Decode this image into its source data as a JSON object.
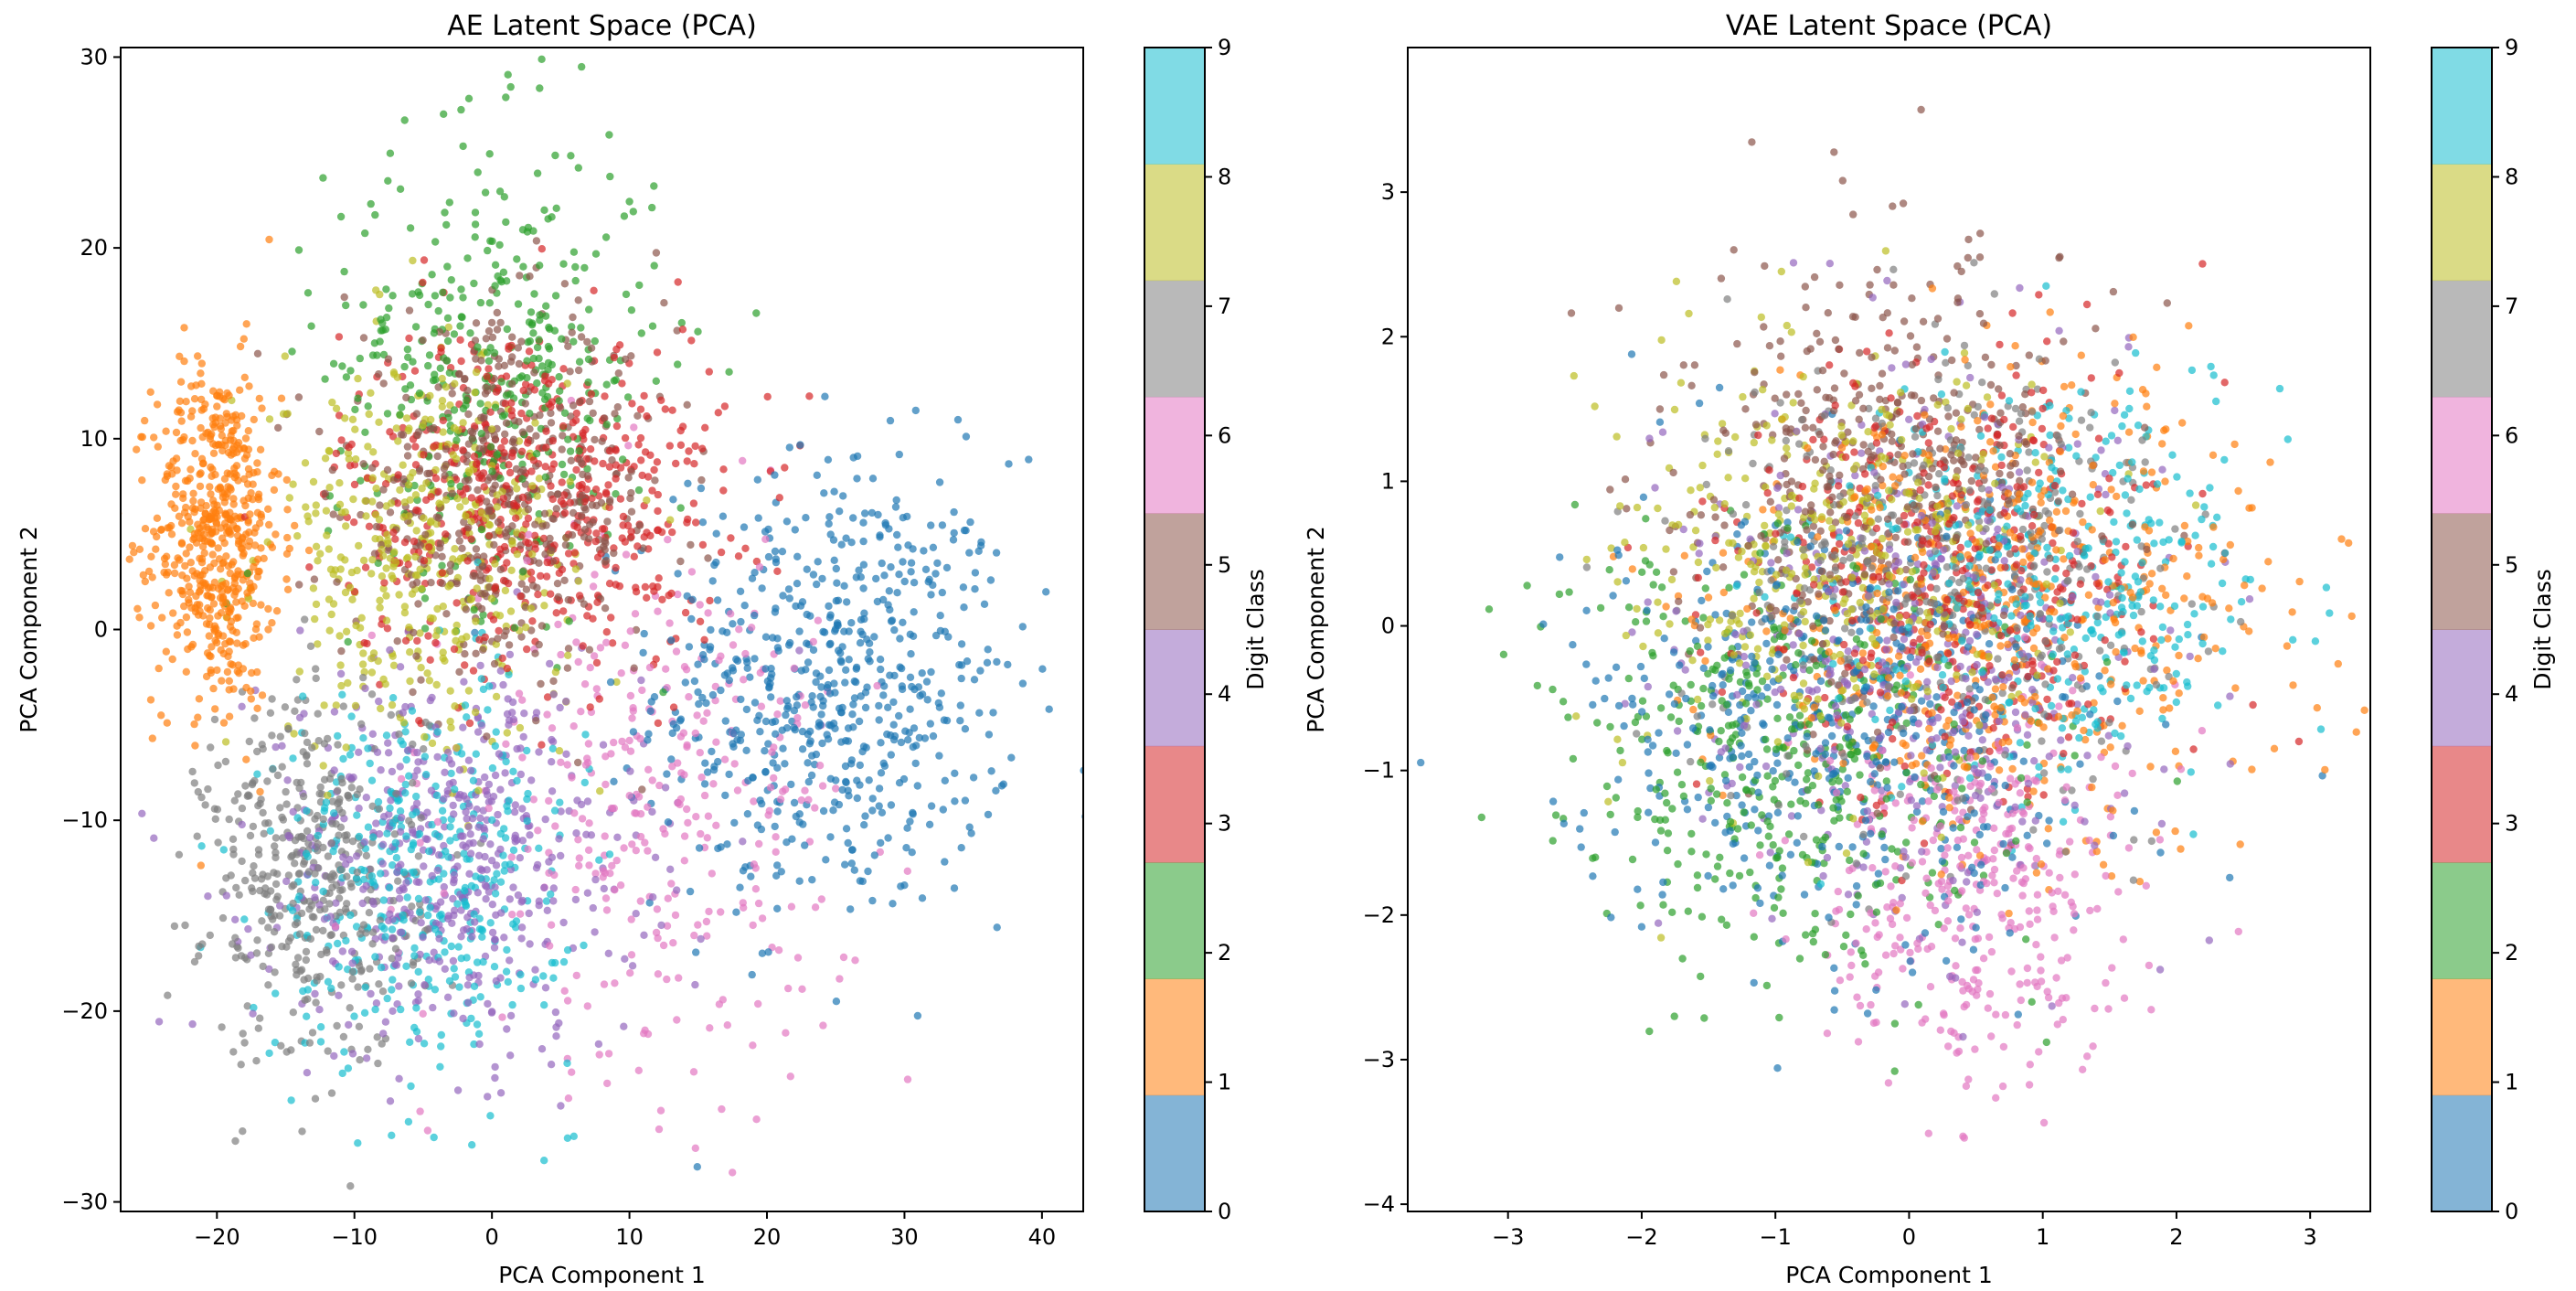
{
  "chart_data": [
    {
      "type": "scatter",
      "title": "AE Latent Space (PCA)",
      "xlabel": "PCA Component 1",
      "ylabel": "PCA Component 2",
      "xlim": [
        -27,
        43
      ],
      "ylim": [
        -30.5,
        30.5
      ],
      "xticks": [
        -20,
        -10,
        0,
        10,
        20,
        30,
        40
      ],
      "yticks": [
        -30,
        -20,
        -10,
        0,
        10,
        20,
        30
      ],
      "grid": false,
      "colorbar": {
        "label": "Digit Class",
        "ticks": [
          0,
          1,
          2,
          3,
          4,
          5,
          6,
          7,
          8,
          9
        ]
      },
      "clusters": [
        {
          "class": 0,
          "center": [
            25,
            -3
          ],
          "spread": [
            6.5,
            6
          ],
          "count": 620
        },
        {
          "class": 1,
          "center": [
            -20,
            5
          ],
          "spread": [
            2.3,
            4.5
          ],
          "count": 560
        },
        {
          "class": 2,
          "center": [
            0,
            14
          ],
          "spread": [
            6,
            6
          ],
          "count": 380
        },
        {
          "class": 3,
          "center": [
            3,
            7
          ],
          "spread": [
            7,
            4.5
          ],
          "count": 540
        },
        {
          "class": 4,
          "center": [
            -3,
            -12
          ],
          "spread": [
            7,
            5
          ],
          "count": 520
        },
        {
          "class": 5,
          "center": [
            1,
            7
          ],
          "spread": [
            6,
            4.5
          ],
          "count": 480
        },
        {
          "class": 6,
          "center": [
            12,
            -9
          ],
          "spread": [
            7,
            7
          ],
          "count": 330
        },
        {
          "class": 7,
          "center": [
            -13,
            -13
          ],
          "spread": [
            4,
            5
          ],
          "count": 420
        },
        {
          "class": 8,
          "center": [
            -5,
            4
          ],
          "spread": [
            5.5,
            5
          ],
          "count": 420
        },
        {
          "class": 9,
          "center": [
            -5,
            -13
          ],
          "spread": [
            5.5,
            5
          ],
          "count": 400
        }
      ]
    },
    {
      "type": "scatter",
      "title": "VAE Latent Space (PCA)",
      "xlabel": "PCA Component 1",
      "ylabel": "PCA Component 2",
      "xlim": [
        -3.75,
        3.45
      ],
      "ylim": [
        -4.05,
        4.0
      ],
      "xticks": [
        -3,
        -2,
        -1,
        0,
        1,
        2,
        3
      ],
      "yticks": [
        -4,
        -3,
        -2,
        -1,
        0,
        1,
        2,
        3
      ],
      "grid": false,
      "colorbar": {
        "label": "Digit Class",
        "ticks": [
          0,
          1,
          2,
          3,
          4,
          5,
          6,
          7,
          8,
          9
        ]
      },
      "clusters": [
        {
          "class": 0,
          "center": [
            -0.5,
            -0.6
          ],
          "spread": [
            0.95,
            0.8
          ],
          "count": 480
        },
        {
          "class": 1,
          "center": [
            0.8,
            0.1
          ],
          "spread": [
            1.0,
            0.8
          ],
          "count": 520
        },
        {
          "class": 2,
          "center": [
            -0.9,
            -0.9
          ],
          "spread": [
            0.85,
            0.75
          ],
          "count": 420
        },
        {
          "class": 3,
          "center": [
            0.3,
            0.4
          ],
          "spread": [
            0.8,
            0.75
          ],
          "count": 420
        },
        {
          "class": 4,
          "center": [
            0.1,
            -0.2
          ],
          "spread": [
            0.9,
            0.9
          ],
          "count": 420
        },
        {
          "class": 5,
          "center": [
            -0.2,
            1.1
          ],
          "spread": [
            0.8,
            0.8
          ],
          "count": 420
        },
        {
          "class": 6,
          "center": [
            0.5,
            -1.8
          ],
          "spread": [
            0.6,
            0.7
          ],
          "count": 350
        },
        {
          "class": 7,
          "center": [
            0.2,
            0.3
          ],
          "spread": [
            0.9,
            0.8
          ],
          "count": 400
        },
        {
          "class": 8,
          "center": [
            -0.6,
            0.4
          ],
          "spread": [
            0.8,
            0.7
          ],
          "count": 380
        },
        {
          "class": 9,
          "center": [
            1.0,
            0.3
          ],
          "spread": [
            0.8,
            0.7
          ],
          "count": 380
        }
      ]
    }
  ],
  "palette": [
    "#1f77b4",
    "#ff7f0e",
    "#2ca02c",
    "#d62728",
    "#9467bd",
    "#8c564b",
    "#e377c2",
    "#7f7f7f",
    "#bcbd22",
    "#17becf"
  ]
}
